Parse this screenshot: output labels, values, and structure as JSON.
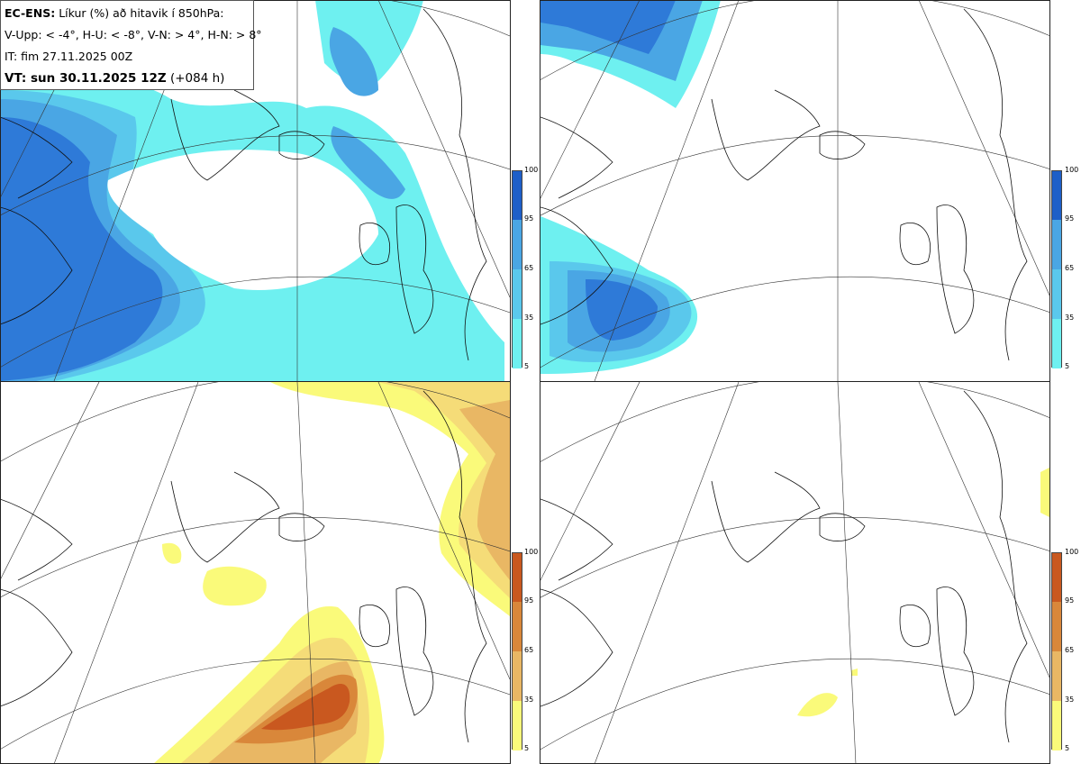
{
  "header": {
    "model": "EC-ENS:",
    "description": "Líkur (%) að hitavik í 850hPa:",
    "thresholds": "V-Upp: < -4°, H-U: < -8°, V-N: > 4°, H-N: > 8°",
    "initial_time": "IT: fim 27.11.2025 00Z",
    "valid_label": "VT: sun 30.11.2025 12Z",
    "lead_time": "(+084 h)"
  },
  "panels": [
    {
      "id": "V-Upp",
      "scheme": "blue"
    },
    {
      "id": "H-U",
      "scheme": "blue"
    },
    {
      "id": "V-N",
      "scheme": "orange"
    },
    {
      "id": "H-N",
      "scheme": "orange"
    }
  ],
  "colorbar_ticks": [
    "100",
    "95",
    "65",
    "35",
    "5"
  ],
  "colors": {
    "blue": [
      "#6ef0f0",
      "#5ac8ec",
      "#4aa6e4",
      "#2e7ad8",
      "#1e5fc8"
    ],
    "orange": [
      "#fafa7a",
      "#f5dc78",
      "#e9b764",
      "#d9873a",
      "#c9581f"
    ]
  }
}
